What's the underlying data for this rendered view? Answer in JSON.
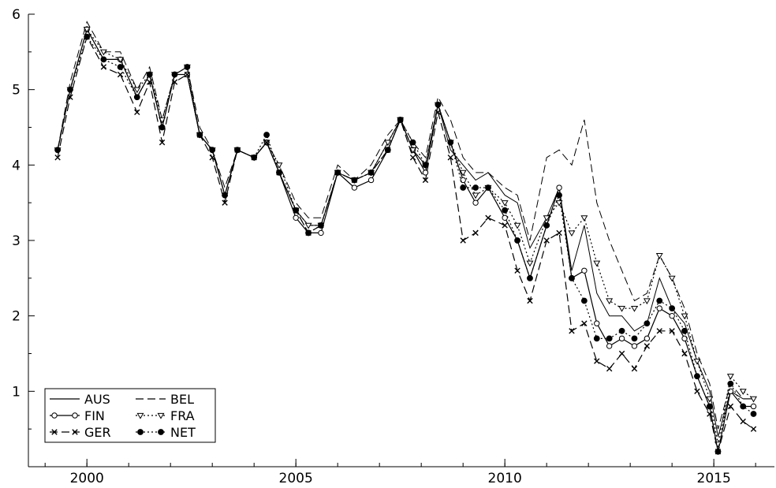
{
  "chart_data": {
    "type": "line",
    "title": "",
    "xlabel": "",
    "ylabel": "",
    "xlim": [
      1998.6,
      2016.45
    ],
    "ylim": [
      0,
      6
    ],
    "x_ticks": [
      2000,
      2005,
      2010,
      2015
    ],
    "x_tick_labels": [
      "2000",
      "2005",
      "2010",
      "2015"
    ],
    "y_ticks": [
      1,
      2,
      3,
      4,
      5,
      6
    ],
    "y_tick_labels": [
      "1",
      "2",
      "3",
      "4",
      "5",
      "6"
    ],
    "grid": false,
    "legend": {
      "position": "bottom-left",
      "entries": [
        "AUS",
        "BEL",
        "FIN",
        "FRA",
        "GER",
        "NET"
      ]
    },
    "x": [
      1999.3,
      1999.6,
      2000.0,
      2000.4,
      2000.8,
      2001.2,
      2001.5,
      2001.8,
      2002.1,
      2002.4,
      2002.7,
      2003.0,
      2003.3,
      2003.6,
      2004.0,
      2004.3,
      2004.6,
      2005.0,
      2005.3,
      2005.6,
      2006.0,
      2006.4,
      2006.8,
      2007.2,
      2007.5,
      2007.8,
      2008.1,
      2008.4,
      2008.7,
      2009.0,
      2009.3,
      2009.6,
      2010.0,
      2010.3,
      2010.6,
      2011.0,
      2011.3,
      2011.6,
      2011.9,
      2012.2,
      2012.5,
      2012.8,
      2013.1,
      2013.4,
      2013.7,
      2014.0,
      2014.3,
      2014.6,
      2014.9,
      2015.1,
      2015.4,
      2015.7,
      2015.95
    ],
    "series": [
      {
        "name": "AUS",
        "style": "solid",
        "marker": "none",
        "values": [
          4.2,
          5.0,
          5.8,
          5.4,
          5.4,
          4.9,
          5.2,
          4.5,
          5.2,
          5.2,
          4.4,
          4.2,
          3.6,
          4.2,
          4.1,
          4.3,
          3.9,
          3.4,
          3.2,
          3.2,
          3.9,
          3.8,
          3.9,
          4.3,
          4.6,
          4.2,
          4.0,
          4.8,
          4.2,
          4.0,
          3.8,
          3.9,
          3.6,
          3.5,
          2.9,
          3.3,
          3.7,
          2.6,
          3.2,
          2.3,
          2.0,
          2.0,
          1.8,
          1.9,
          2.5,
          2.1,
          1.9,
          1.4,
          1.0,
          0.4,
          1.0,
          0.9,
          0.9
        ]
      },
      {
        "name": "BEL",
        "style": "dashed",
        "marker": "none",
        "values": [
          4.2,
          5.1,
          5.9,
          5.5,
          5.5,
          5.0,
          5.3,
          4.6,
          5.2,
          5.3,
          4.5,
          4.2,
          3.7,
          4.2,
          4.1,
          4.3,
          4.0,
          3.5,
          3.3,
          3.3,
          4.0,
          3.8,
          4.0,
          4.4,
          4.6,
          4.3,
          4.1,
          4.9,
          4.6,
          4.1,
          3.9,
          3.9,
          3.7,
          3.6,
          3.0,
          4.1,
          4.2,
          4.0,
          4.6,
          3.5,
          3.0,
          2.6,
          2.2,
          2.3,
          2.8,
          2.5,
          2.1,
          1.5,
          1.1,
          0.5,
          1.1,
          0.9,
          0.9
        ]
      },
      {
        "name": "FIN",
        "style": "solid",
        "marker": "circle",
        "values": [
          4.2,
          5.0,
          5.8,
          5.4,
          5.4,
          4.9,
          5.2,
          4.5,
          5.2,
          5.2,
          4.4,
          4.2,
          3.6,
          4.2,
          4.1,
          4.3,
          3.9,
          3.3,
          3.1,
          3.1,
          3.9,
          3.7,
          3.8,
          4.2,
          4.6,
          4.2,
          3.9,
          4.8,
          4.3,
          3.8,
          3.5,
          3.7,
          3.3,
          3.0,
          2.5,
          3.2,
          3.7,
          2.5,
          2.6,
          1.9,
          1.6,
          1.7,
          1.6,
          1.7,
          2.1,
          2.0,
          1.7,
          1.2,
          0.8,
          0.2,
          1.0,
          0.8,
          0.8
        ]
      },
      {
        "name": "FRA",
        "style": "dotted",
        "marker": "triangle-down",
        "values": [
          4.2,
          5.0,
          5.8,
          5.5,
          5.4,
          5.0,
          5.2,
          4.6,
          5.2,
          5.3,
          4.4,
          4.2,
          3.6,
          4.2,
          4.1,
          4.3,
          4.0,
          3.4,
          3.2,
          3.2,
          3.9,
          3.8,
          3.9,
          4.3,
          4.6,
          4.2,
          4.0,
          4.8,
          4.3,
          3.9,
          3.6,
          3.7,
          3.5,
          3.2,
          2.7,
          3.3,
          3.5,
          3.1,
          3.3,
          2.7,
          2.2,
          2.1,
          2.1,
          2.2,
          2.8,
          2.5,
          2.0,
          1.4,
          0.9,
          0.3,
          1.2,
          1.0,
          0.9
        ]
      },
      {
        "name": "GER",
        "style": "dashed",
        "marker": "x",
        "values": [
          4.1,
          4.9,
          5.7,
          5.3,
          5.2,
          4.7,
          5.1,
          4.3,
          5.1,
          5.2,
          4.4,
          4.1,
          3.5,
          4.2,
          4.1,
          4.3,
          3.9,
          3.4,
          3.1,
          3.2,
          3.9,
          3.8,
          3.9,
          4.2,
          4.6,
          4.1,
          3.8,
          4.7,
          4.1,
          3.0,
          3.1,
          3.3,
          3.2,
          2.6,
          2.2,
          3.0,
          3.1,
          1.8,
          1.9,
          1.4,
          1.3,
          1.5,
          1.3,
          1.6,
          1.8,
          1.8,
          1.5,
          1.0,
          0.7,
          0.2,
          0.8,
          0.6,
          0.5
        ]
      },
      {
        "name": "NET",
        "style": "dotted",
        "marker": "filled-circle",
        "values": [
          4.2,
          5.0,
          5.7,
          5.4,
          5.3,
          4.9,
          5.2,
          4.5,
          5.2,
          5.3,
          4.4,
          4.2,
          3.6,
          4.2,
          4.1,
          4.4,
          3.9,
          3.4,
          3.1,
          3.2,
          3.9,
          3.8,
          3.9,
          4.2,
          4.6,
          4.3,
          4.0,
          4.8,
          4.3,
          3.7,
          3.7,
          3.7,
          3.4,
          3.0,
          2.5,
          3.2,
          3.6,
          2.5,
          2.2,
          1.7,
          1.7,
          1.8,
          1.7,
          1.9,
          2.2,
          2.1,
          1.8,
          1.2,
          0.8,
          0.2,
          1.1,
          0.8,
          0.7
        ]
      }
    ]
  }
}
